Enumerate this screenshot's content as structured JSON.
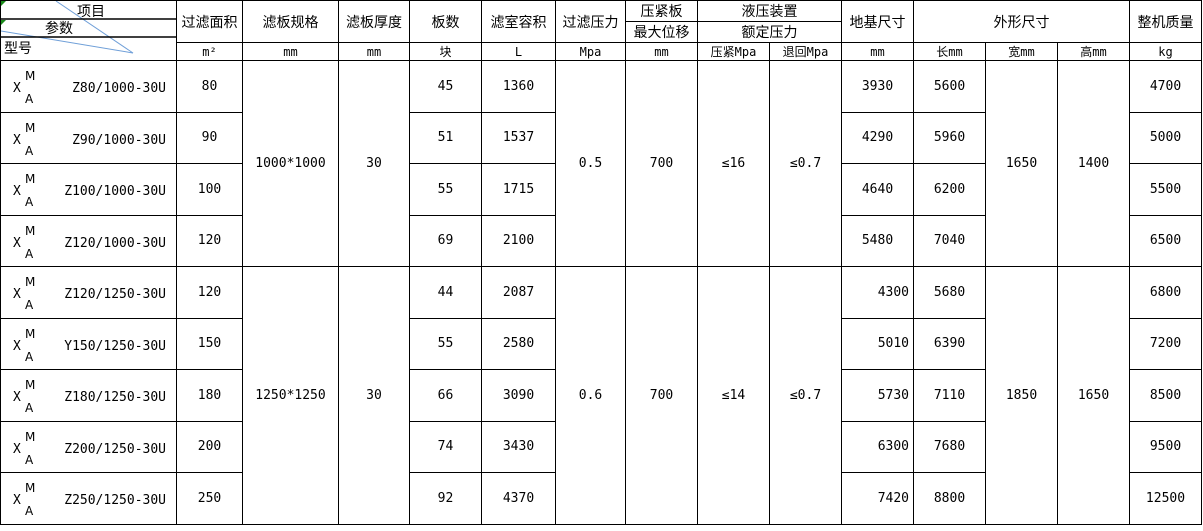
{
  "header": {
    "corner": {
      "item": "项目",
      "param": "参数",
      "model": "型号"
    },
    "columns": [
      {
        "label": "过滤面积",
        "unit": "m²"
      },
      {
        "label": "滤板规格",
        "unit": "mm"
      },
      {
        "label": "滤板厚度",
        "unit": "mm"
      },
      {
        "label": "板数",
        "unit": "块"
      },
      {
        "label": "滤室容积",
        "unit": "L"
      },
      {
        "label": "过滤压力",
        "unit": "Mpa"
      },
      {
        "label": "压紧板",
        "label2": "最大位移",
        "unit": "mm"
      },
      {
        "label": "液压装置",
        "label2": "额定压力",
        "unit": "压紧Mpa",
        "unit2": "退回Mpa"
      },
      {
        "label": "地基尺寸",
        "unit": "mm"
      },
      {
        "label": "外形尺寸",
        "unit": "长mm",
        "unit2": "宽mm",
        "unit3": "高mm"
      },
      {
        "label": "整机质量",
        "unit": "kg"
      }
    ]
  },
  "groups": [
    {
      "plate_size": "1000*1000",
      "thickness": "30",
      "pressure": "0.5",
      "displacement": "700",
      "press_mpa": "≤16",
      "return_mpa": "≤0.7",
      "width": "1650",
      "height": "1400",
      "rows": [
        {
          "prefix": "X",
          "sup": "M",
          "sub": "A",
          "model": "Z80/1000-30U",
          "area": "80",
          "plates": "45",
          "volume": "1360",
          "foundation": "3930",
          "length": "5600",
          "weight": "4700"
        },
        {
          "prefix": "X",
          "sup": "M",
          "sub": "A",
          "model": "Z90/1000-30U",
          "area": "90",
          "plates": "51",
          "volume": "1537",
          "foundation": "4290",
          "length": "5960",
          "weight": "5000"
        },
        {
          "prefix": "X",
          "sup": "M",
          "sub": "A",
          "model": "Z100/1000-30U",
          "area": "100",
          "plates": "55",
          "volume": "1715",
          "foundation": "4640",
          "length": "6200",
          "weight": "5500"
        },
        {
          "prefix": "X",
          "sup": "M",
          "sub": "A",
          "model": "Z120/1000-30U",
          "area": "120",
          "plates": "69",
          "volume": "2100",
          "foundation": "5480",
          "length": "7040",
          "weight": "6500"
        }
      ]
    },
    {
      "plate_size": "1250*1250",
      "thickness": "30",
      "pressure": "0.6",
      "displacement": "700",
      "press_mpa": "≤14",
      "return_mpa": "≤0.7",
      "width": "1850",
      "height": "1650",
      "rows": [
        {
          "prefix": "X",
          "sup": "M",
          "sub": "A",
          "model": "Z120/1250-30U",
          "area": "120",
          "plates": "44",
          "volume": "2087",
          "foundation": "4300",
          "length": "5680",
          "weight": "6800"
        },
        {
          "prefix": "X",
          "sup": "M",
          "sub": "A",
          "model": "Y150/1250-30U",
          "area": "150",
          "plates": "55",
          "volume": "2580",
          "foundation": "5010",
          "length": "6390",
          "weight": "7200"
        },
        {
          "prefix": "X",
          "sup": "M",
          "sub": "A",
          "model": "Z180/1250-30U",
          "area": "180",
          "plates": "66",
          "volume": "3090",
          "foundation": "5730",
          "length": "7110",
          "weight": "8500"
        },
        {
          "prefix": "X",
          "sup": "M",
          "sub": "A",
          "model": "Z200/1250-30U",
          "area": "200",
          "plates": "74",
          "volume": "3430",
          "foundation": "6300",
          "length": "7680",
          "weight": "9500"
        },
        {
          "prefix": "X",
          "sup": "M",
          "sub": "A",
          "model": "Z250/1250-30U",
          "area": "250",
          "plates": "92",
          "volume": "4370",
          "foundation": "7420",
          "length": "8800",
          "weight": "12500"
        }
      ]
    }
  ],
  "colors": {
    "grid": "#000000",
    "diagonal": "#6f9fd8",
    "cell_marker": "#1a8a1a"
  }
}
